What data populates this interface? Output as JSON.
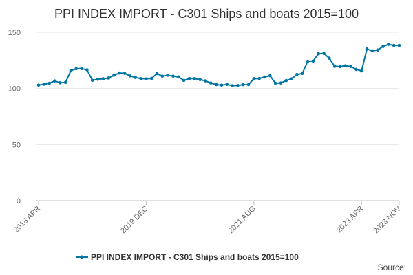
{
  "chart_data": {
    "type": "line",
    "title": "PPI INDEX IMPORT - C301 Ships and boats 2015=100",
    "xlabel": "",
    "ylabel": "",
    "ylim": [
      0,
      150
    ],
    "yticks": [
      0,
      50,
      100,
      150
    ],
    "grid": true,
    "legend_position": "bottom",
    "series_color": "#0075a3",
    "x_tick_labels": [
      "2018 APR",
      "2019 DEC",
      "2021 AUG",
      "2023 APR",
      "2023 NOV"
    ],
    "x": [
      "2018 APR",
      "2018 MAY",
      "2018 JUN",
      "2018 JUL",
      "2018 AUG",
      "2018 SEP",
      "2018 OCT",
      "2018 NOV",
      "2018 DEC",
      "2019 JAN",
      "2019 FEB",
      "2019 MAR",
      "2019 APR",
      "2019 MAY",
      "2019 JUN",
      "2019 JUL",
      "2019 AUG",
      "2019 SEP",
      "2019 OCT",
      "2019 NOV",
      "2019 DEC",
      "2020 JAN",
      "2020 FEB",
      "2020 MAR",
      "2020 APR",
      "2020 MAY",
      "2020 JUN",
      "2020 JUL",
      "2020 AUG",
      "2020 SEP",
      "2020 OCT",
      "2020 NOV",
      "2020 DEC",
      "2021 JAN",
      "2021 FEB",
      "2021 MAR",
      "2021 APR",
      "2021 MAY",
      "2021 JUN",
      "2021 JUL",
      "2021 AUG",
      "2021 SEP",
      "2021 OCT",
      "2021 NOV",
      "2021 DEC",
      "2022 JAN",
      "2022 FEB",
      "2022 MAR",
      "2022 APR",
      "2022 MAY",
      "2022 JUN",
      "2022 JUL",
      "2022 AUG",
      "2022 SEP",
      "2022 OCT",
      "2022 NOV",
      "2022 DEC",
      "2023 JAN",
      "2023 FEB",
      "2023 MAR",
      "2023 APR",
      "2023 MAY",
      "2023 JUN",
      "2023 JUL",
      "2023 AUG",
      "2023 SEP",
      "2023 OCT",
      "2023 NOV"
    ],
    "series": [
      {
        "name": "PPI INDEX IMPORT - C301 Ships and boats 2015=100",
        "values": [
          103.0,
          103.8,
          104.6,
          106.7,
          105.1,
          105.4,
          115.8,
          117.6,
          117.7,
          116.6,
          107.3,
          108.2,
          108.7,
          109.3,
          111.8,
          113.8,
          113.5,
          111.2,
          109.8,
          108.8,
          108.6,
          109.0,
          113.3,
          111.0,
          111.8,
          111.0,
          110.3,
          107.2,
          108.9,
          108.8,
          107.9,
          106.8,
          104.9,
          103.5,
          103.0,
          103.6,
          102.5,
          102.7,
          103.4,
          103.5,
          108.7,
          108.9,
          110.2,
          111.4,
          104.7,
          104.9,
          107.1,
          108.6,
          112.5,
          113.4,
          124.2,
          124.4,
          131.0,
          131.2,
          127.0,
          119.7,
          119.5,
          120.2,
          119.6,
          117.0,
          115.7,
          135.1,
          133.5,
          134.2,
          137.4,
          139.3,
          138.3,
          138.3
        ]
      }
    ]
  },
  "source_label": "Source:"
}
